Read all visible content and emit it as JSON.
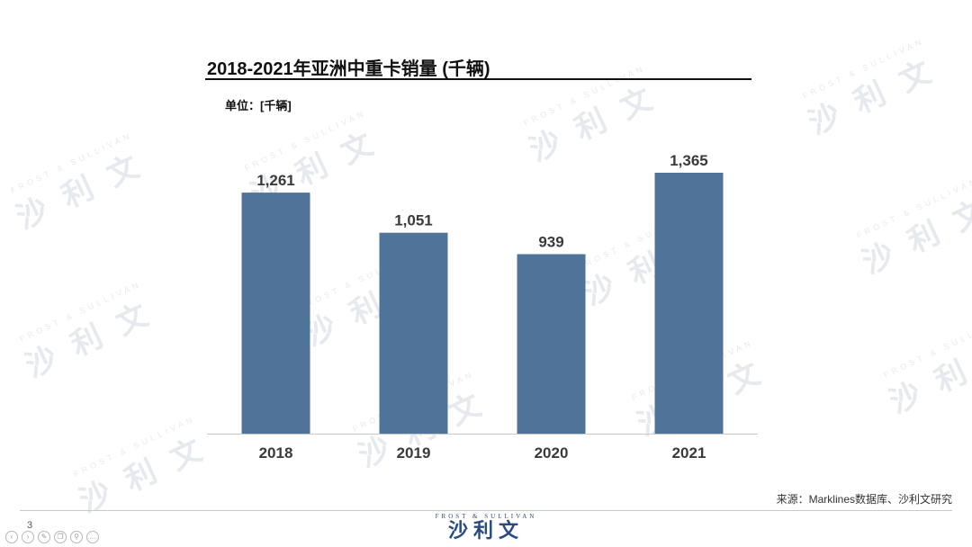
{
  "header": {
    "title": "2018-2021年亚洲中重卡销量 (千辆)",
    "unit_label": "单位：[千辆]"
  },
  "watermark": {
    "cn": "沙 利 文",
    "en": "FROST & SULLIVAN"
  },
  "chart_data": {
    "type": "bar",
    "title": "2018-2021年亚洲中重卡销量 (千辆)",
    "xlabel": "",
    "ylabel": "",
    "unit": "千辆",
    "categories": [
      "2018",
      "2019",
      "2020",
      "2021"
    ],
    "values": [
      1261,
      1051,
      939,
      1365
    ],
    "value_labels": [
      "1,261",
      "1,051",
      "939",
      "1,365"
    ],
    "ylim": [
      0,
      1365
    ],
    "grid": false,
    "legend": "none",
    "bar_color": "#50739a"
  },
  "footer": {
    "source": "来源：Marklines数据库、沙利文研究",
    "page_number": "3",
    "logo_en": "FROST & SULLIVAN",
    "logo_cn": "沙利文",
    "toolbar_icons": [
      "prev-icon",
      "next-icon",
      "edit-icon",
      "copy-icon",
      "zoom-icon",
      "more-icon"
    ]
  }
}
